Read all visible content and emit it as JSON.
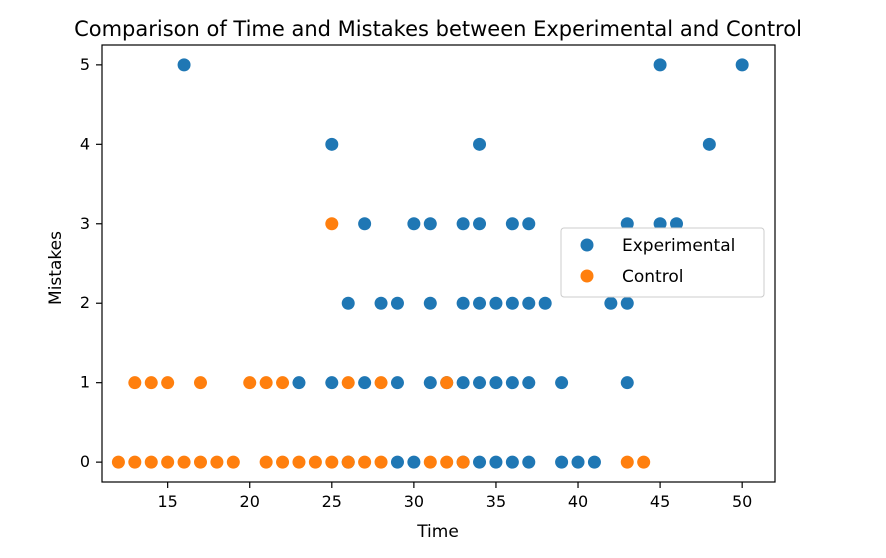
{
  "chart_data": {
    "type": "scatter",
    "title": "Comparison of Time and Mistakes between Experimental and Control",
    "xlabel": "Time",
    "ylabel": "Mistakes",
    "xlim": [
      11,
      52
    ],
    "ylim": [
      -0.25,
      5.25
    ],
    "xticks": [
      15,
      20,
      25,
      30,
      35,
      40,
      45,
      50
    ],
    "yticks": [
      0,
      1,
      2,
      3,
      4,
      5
    ],
    "grid": false,
    "legend_position": "center-right",
    "series": [
      {
        "name": "Experimental",
        "color": "#1f77b4",
        "points": [
          [
            16,
            5
          ],
          [
            45,
            5
          ],
          [
            50,
            5
          ],
          [
            25,
            4
          ],
          [
            34,
            4
          ],
          [
            48,
            4
          ],
          [
            27,
            3
          ],
          [
            30,
            3
          ],
          [
            31,
            3
          ],
          [
            33,
            3
          ],
          [
            34,
            3
          ],
          [
            36,
            3
          ],
          [
            37,
            3
          ],
          [
            43,
            3
          ],
          [
            45,
            3
          ],
          [
            46,
            3
          ],
          [
            26,
            2
          ],
          [
            28,
            2
          ],
          [
            29,
            2
          ],
          [
            31,
            2
          ],
          [
            33,
            2
          ],
          [
            34,
            2
          ],
          [
            35,
            2
          ],
          [
            36,
            2
          ],
          [
            37,
            2
          ],
          [
            38,
            2
          ],
          [
            42,
            2
          ],
          [
            43,
            2
          ],
          [
            23,
            1
          ],
          [
            25,
            1
          ],
          [
            27,
            1
          ],
          [
            29,
            1
          ],
          [
            31,
            1
          ],
          [
            32,
            1
          ],
          [
            33,
            1
          ],
          [
            34,
            1
          ],
          [
            35,
            1
          ],
          [
            36,
            1
          ],
          [
            37,
            1
          ],
          [
            39,
            1
          ],
          [
            43,
            1
          ],
          [
            26,
            0
          ],
          [
            29,
            0
          ],
          [
            30,
            0
          ],
          [
            33,
            0
          ],
          [
            34,
            0
          ],
          [
            35,
            0
          ],
          [
            36,
            0
          ],
          [
            37,
            0
          ],
          [
            39,
            0
          ],
          [
            40,
            0
          ],
          [
            41,
            0
          ]
        ]
      },
      {
        "name": "Control",
        "color": "#ff7f0e",
        "points": [
          [
            25,
            3
          ],
          [
            13,
            1
          ],
          [
            14,
            1
          ],
          [
            15,
            1
          ],
          [
            17,
            1
          ],
          [
            20,
            1
          ],
          [
            21,
            1
          ],
          [
            22,
            1
          ],
          [
            26,
            1
          ],
          [
            28,
            1
          ],
          [
            32,
            1
          ],
          [
            12,
            0
          ],
          [
            13,
            0
          ],
          [
            14,
            0
          ],
          [
            15,
            0
          ],
          [
            16,
            0
          ],
          [
            17,
            0
          ],
          [
            18,
            0
          ],
          [
            19,
            0
          ],
          [
            21,
            0
          ],
          [
            22,
            0
          ],
          [
            23,
            0
          ],
          [
            24,
            0
          ],
          [
            25,
            0
          ],
          [
            26,
            0
          ],
          [
            27,
            0
          ],
          [
            28,
            0
          ],
          [
            31,
            0
          ],
          [
            32,
            0
          ],
          [
            33,
            0
          ],
          [
            43,
            0
          ],
          [
            44,
            0
          ]
        ]
      }
    ]
  }
}
